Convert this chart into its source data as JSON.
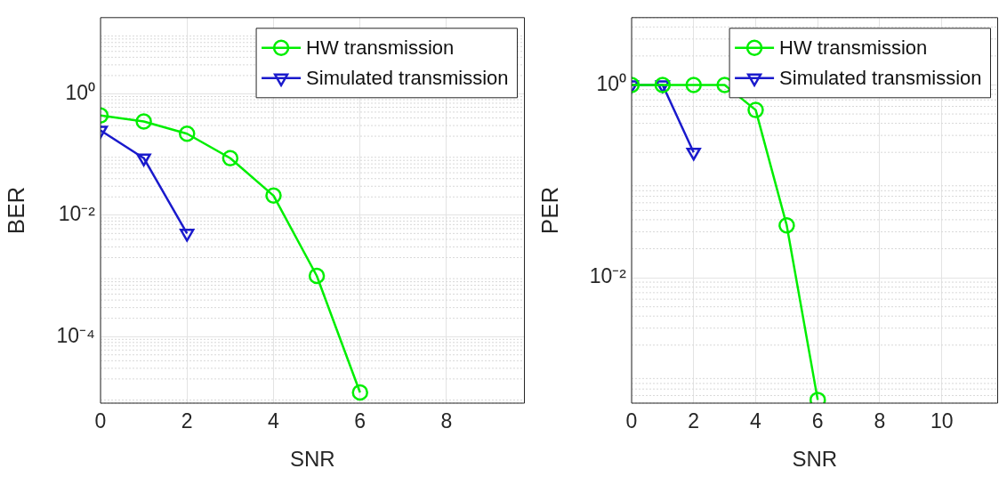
{
  "chart_data": [
    {
      "type": "line",
      "xlabel": "SNR",
      "ylabel": "BER",
      "log": "y",
      "grid": true,
      "legend": "top right",
      "xlim": [
        0,
        9.8
      ],
      "xticks": [
        0,
        2,
        4,
        6,
        8
      ],
      "ylim": [
        8e-06,
        18
      ],
      "yticks": [
        {
          "value": 0.0001,
          "label": "10⁻⁴"
        },
        {
          "value": 0.01,
          "label": "10⁻²"
        },
        {
          "value": 1,
          "label": "10⁰"
        }
      ],
      "series": [
        {
          "name": "HW transmission",
          "color": "#00ee00",
          "marker": "circle",
          "x": [
            0,
            1,
            2,
            3,
            4,
            5,
            6
          ],
          "values": [
            0.44,
            0.35,
            0.22,
            0.087,
            0.021,
            0.001,
            1.2e-05
          ]
        },
        {
          "name": "Simulated transmission",
          "color": "#1a1acc",
          "marker": "triangle",
          "x": [
            0,
            1,
            2
          ],
          "values": [
            0.25,
            0.087,
            0.005
          ]
        }
      ]
    },
    {
      "type": "line",
      "xlabel": "SNR",
      "ylabel": "PER",
      "log": "y",
      "grid": true,
      "legend": "top right",
      "xlim": [
        0,
        11.8
      ],
      "xticks": [
        0,
        2,
        4,
        6,
        8,
        10
      ],
      "ylim": [
        0.0005,
        5
      ],
      "yticks": [
        {
          "value": 0.01,
          "label": "10⁻²"
        },
        {
          "value": 1,
          "label": "10⁰"
        }
      ],
      "series": [
        {
          "name": "HW transmission",
          "color": "#00ee00",
          "marker": "circle",
          "x": [
            0,
            1,
            2,
            3,
            4,
            5,
            6
          ],
          "values": [
            1,
            1,
            1,
            1,
            0.55,
            0.035,
            0.00054
          ]
        },
        {
          "name": "Simulated transmission",
          "color": "#1a1acc",
          "marker": "triangle",
          "x": [
            0,
            1,
            2
          ],
          "values": [
            1,
            1,
            0.2
          ]
        }
      ]
    }
  ]
}
